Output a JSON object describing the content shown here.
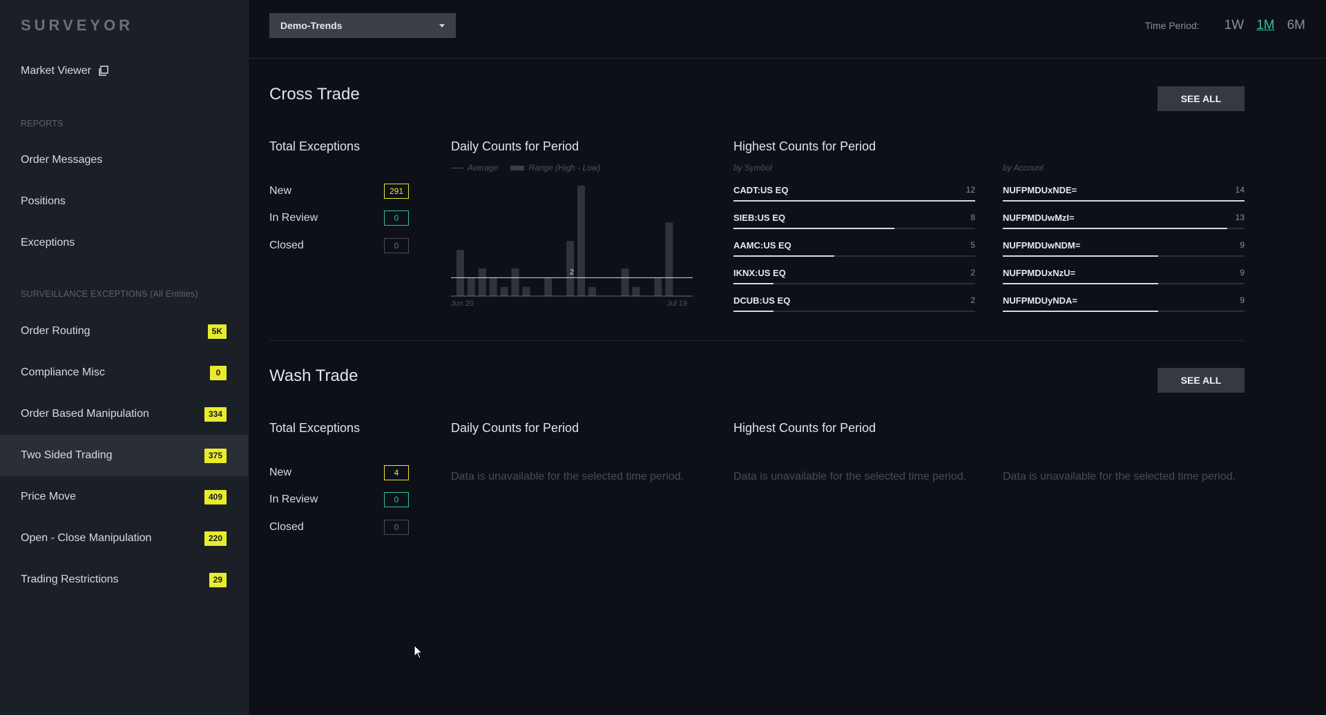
{
  "sidebar": {
    "logo": "SURVEYOR",
    "market_viewer": "Market Viewer",
    "reports_label": "REPORTS",
    "reports": [
      "Order Messages",
      "Positions",
      "Exceptions"
    ],
    "surveillance_label": "SURVEILLANCE EXCEPTIONS (All Entities)",
    "surveillance": [
      {
        "label": "Order Routing",
        "count": "5K"
      },
      {
        "label": "Compliance Misc",
        "count": "0"
      },
      {
        "label": "Order Based Manipulation",
        "count": "334"
      },
      {
        "label": "Two Sided Trading",
        "count": "375",
        "active": true
      },
      {
        "label": "Price Move",
        "count": "409"
      },
      {
        "label": "Open - Close Manipulation",
        "count": "220"
      },
      {
        "label": "Trading Restrictions",
        "count": "29"
      }
    ]
  },
  "header": {
    "selected_view": "Demo-Trends",
    "time_period_label": "Time Period:",
    "time_options": [
      "1W",
      "1M",
      "6M"
    ],
    "time_selected": "1M"
  },
  "cross_trade": {
    "title": "Cross Trade",
    "see_all": "SEE ALL",
    "total_title": "Total Exceptions",
    "new_label": "New",
    "new_count": "291",
    "review_label": "In Review",
    "review_count": "0",
    "closed_label": "Closed",
    "closed_count": "0",
    "daily_title": "Daily Counts for Period",
    "legend_average": "Average",
    "legend_range": "Range (High - Low)",
    "avg_label": "2",
    "x_start": "Jun 20",
    "x_end": "Jul 19",
    "highest_title": "Highest Counts for Period",
    "by_symbol_label": "by Symbol",
    "by_account_label": "by Account",
    "by_symbol": [
      {
        "name": "CADT:US EQ",
        "value": 12
      },
      {
        "name": "SIEB:US EQ",
        "value": 8
      },
      {
        "name": "AAMC:US EQ",
        "value": 5
      },
      {
        "name": "IKNX:US EQ",
        "value": 2
      },
      {
        "name": "DCUB:US EQ",
        "value": 2
      }
    ],
    "by_account": [
      {
        "name": "NUFPMDUxNDE=",
        "value": 14
      },
      {
        "name": "NUFPMDUwMzI=",
        "value": 13
      },
      {
        "name": "NUFPMDUwNDM=",
        "value": 9
      },
      {
        "name": "NUFPMDUxNzU=",
        "value": 9
      },
      {
        "name": "NUFPMDUyNDA=",
        "value": 9
      }
    ]
  },
  "chart_data": {
    "type": "bar",
    "title": "Daily Counts for Period",
    "x_start": "Jun 20",
    "x_end": "Jul 19",
    "values": [
      5,
      2,
      3,
      2,
      1,
      3,
      1,
      0,
      2,
      0,
      6,
      12,
      1,
      0,
      0,
      3,
      1,
      0,
      2,
      8,
      0
    ],
    "average": 2
  },
  "wash_trade": {
    "title": "Wash Trade",
    "see_all": "SEE ALL",
    "total_title": "Total Exceptions",
    "new_label": "New",
    "new_count": "4",
    "review_label": "In Review",
    "review_count": "0",
    "closed_label": "Closed",
    "closed_count": "0",
    "daily_title": "Daily Counts for Period",
    "highest_title": "Highest Counts for Period",
    "unavailable": "Data is unavailable for the selected time period."
  },
  "colors": {
    "accent_yellow": "#e9ec2c",
    "accent_green": "#2fc39a",
    "background": "#0d1016",
    "sidebar": "#1b1f26"
  }
}
